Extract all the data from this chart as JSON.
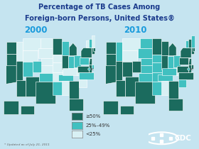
{
  "title_line1": "Percentage of TB Cases Among",
  "title_line2": "Foreign-born Persons, United States®",
  "year_left": "2000",
  "year_right": "2010",
  "footnote": "* Updated as of July 21, 2011",
  "legend_labels": [
    "≥50%",
    "25%–49%",
    "<25%"
  ],
  "legend_colors": [
    "#1b6b5e",
    "#40c0c0",
    "#d8f0f4"
  ],
  "bg_color": "#c5e4f0",
  "title_color": "#1a3a8c",
  "year_color": "#1a9bdc",
  "cdc_blue": "#1a4fa0",
  "color_ge50": "#1b6b5e",
  "color_25_49": "#40c0c0",
  "color_lt25": "#d8f0f4",
  "color_dc_dot": "#40c0c0",
  "white_border": "#ffffff",
  "map_lw": 0.4
}
